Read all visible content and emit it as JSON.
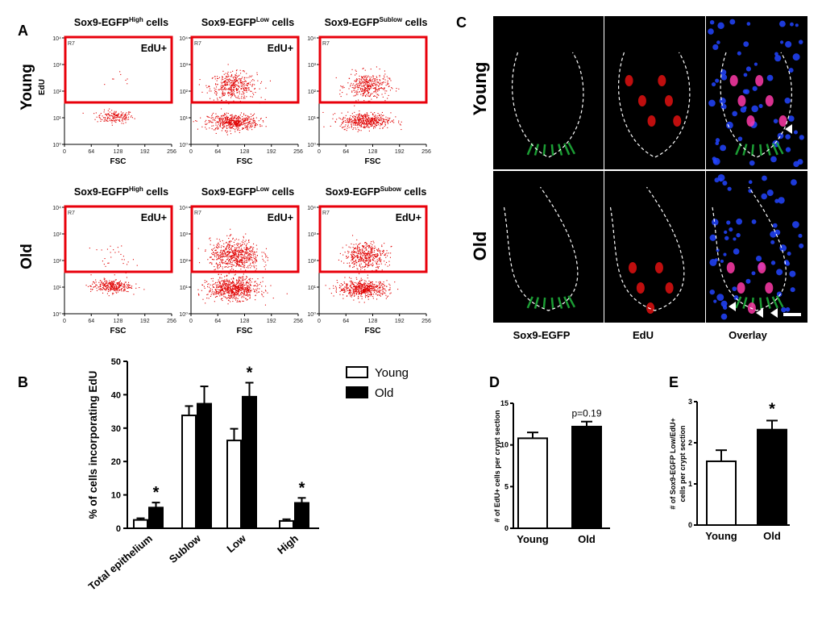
{
  "panel_labels": {
    "A": "A",
    "B": "B",
    "C": "C",
    "D": "D",
    "E": "E"
  },
  "colors": {
    "red": "#e8000b",
    "dot": "#e00000",
    "green": "#1fae3a",
    "blue": "#2244ff",
    "magenta": "#ff3aa8"
  },
  "flow": {
    "rows": [
      {
        "label": "Young",
        "edu_axis": "EdU"
      },
      {
        "label": "Old",
        "edu_axis": ""
      }
    ],
    "panels": [
      {
        "row": 0,
        "col": 0,
        "title": "Sox9-EGFP",
        "sup": "High",
        "suffix": " cells",
        "edu_label": "EdU+",
        "gate": "R7",
        "xlabel": "FSC",
        "xticks": [
          "0",
          "64",
          "128",
          "192",
          "256"
        ],
        "yticks": [
          "10⁰",
          "10¹",
          "10²",
          "10³",
          "10⁴"
        ],
        "populations": [
          {
            "label": "upper",
            "n": 8,
            "x_mean": 140,
            "x_sd": 22,
            "y_mean": 2.4,
            "y_sd": 0.25
          },
          {
            "label": "lower",
            "n": 170,
            "x_mean": 120,
            "x_sd": 22,
            "y_mean": 1.05,
            "y_sd": 0.12
          }
        ]
      },
      {
        "row": 0,
        "col": 1,
        "title": "Sox9-EGFP",
        "sup": "Low",
        "suffix": " cells",
        "edu_label": "EdU+",
        "gate": "R7",
        "xlabel": "FSC",
        "xticks": [
          "0",
          "64",
          "128",
          "192",
          "256"
        ],
        "yticks": [
          "10⁰",
          "10¹",
          "10²",
          "10³",
          "10⁴"
        ],
        "populations": [
          {
            "label": "upper",
            "n": 420,
            "x_mean": 100,
            "x_sd": 28,
            "y_mean": 2.2,
            "y_sd": 0.25
          },
          {
            "label": "lower",
            "n": 520,
            "x_mean": 100,
            "x_sd": 30,
            "y_mean": 0.85,
            "y_sd": 0.15
          }
        ]
      },
      {
        "row": 0,
        "col": 2,
        "title": "Sox9-EGFP",
        "sup": "Sublow",
        "suffix": " cells",
        "edu_label": "",
        "gate": "R7",
        "xlabel": "FSC",
        "xticks": [
          "0",
          "64",
          "128",
          "192",
          "256"
        ],
        "yticks": [
          "10⁰",
          "10¹",
          "10²",
          "10³",
          "10⁴"
        ],
        "populations": [
          {
            "label": "upper",
            "n": 380,
            "x_mean": 115,
            "x_sd": 25,
            "y_mean": 2.2,
            "y_sd": 0.25
          },
          {
            "label": "lower",
            "n": 480,
            "x_mean": 110,
            "x_sd": 30,
            "y_mean": 0.9,
            "y_sd": 0.15
          }
        ]
      },
      {
        "row": 1,
        "col": 0,
        "title": "Sox9-EGFP",
        "sup": "High",
        "suffix": " cells",
        "edu_label": "EdU+",
        "gate": "R7",
        "xlabel": "FSC",
        "xticks": [
          "0",
          "64",
          "128",
          "192",
          "256"
        ],
        "yticks": [
          "10⁰",
          "10¹",
          "10²",
          "10³",
          "10⁴"
        ],
        "populations": [
          {
            "label": "upper",
            "n": 30,
            "x_mean": 120,
            "x_sd": 25,
            "y_mean": 2.1,
            "y_sd": 0.25
          },
          {
            "label": "lower",
            "n": 300,
            "x_mean": 110,
            "x_sd": 24,
            "y_mean": 1.05,
            "y_sd": 0.12
          }
        ]
      },
      {
        "row": 1,
        "col": 1,
        "title": "Sox9-EGFP",
        "sup": "Low",
        "suffix": " cells",
        "edu_label": "EdU+",
        "gate": "R7",
        "xlabel": "FSC",
        "xticks": [
          "0",
          "64",
          "128",
          "192",
          "256"
        ],
        "yticks": [
          "10⁰",
          "10¹",
          "10²",
          "10³",
          "10⁴"
        ],
        "populations": [
          {
            "label": "upper",
            "n": 650,
            "x_mean": 105,
            "x_sd": 30,
            "y_mean": 2.2,
            "y_sd": 0.3
          },
          {
            "label": "lower",
            "n": 700,
            "x_mean": 100,
            "x_sd": 30,
            "y_mean": 0.95,
            "y_sd": 0.2
          }
        ]
      },
      {
        "row": 1,
        "col": 2,
        "title": "Sox9-EGFP",
        "sup": "Subow",
        "suffix": " cells",
        "edu_label": "EdU+",
        "gate": "R7",
        "xlabel": "FSC",
        "xticks": [
          "0",
          "64",
          "128",
          "192",
          "256"
        ],
        "yticks": [
          "10⁰",
          "10¹",
          "10²",
          "10³",
          "10⁴"
        ],
        "populations": [
          {
            "label": "upper",
            "n": 450,
            "x_mean": 110,
            "x_sd": 25,
            "y_mean": 2.2,
            "y_sd": 0.25
          },
          {
            "label": "lower",
            "n": 550,
            "x_mean": 105,
            "x_sd": 30,
            "y_mean": 0.95,
            "y_sd": 0.15
          }
        ]
      }
    ]
  },
  "chart_data": [
    {
      "id": "B",
      "type": "bar",
      "title": "",
      "ylabel": "% of cells incorporating EdU",
      "xlabel": "",
      "ylim": [
        0,
        50
      ],
      "yticks": [
        0,
        10,
        20,
        30,
        40,
        50
      ],
      "categories": [
        "Total epithelium",
        "Sublow",
        "Low",
        "High"
      ],
      "series": [
        {
          "name": "Young",
          "color": "#ffffff",
          "values": [
            2.5,
            33.8,
            26.3,
            2.2
          ],
          "errors": [
            0.5,
            2.8,
            3.5,
            0.5
          ]
        },
        {
          "name": "Old",
          "color": "#000000",
          "values": [
            6.2,
            37.3,
            39.4,
            7.6
          ],
          "errors": [
            1.5,
            5.2,
            4.2,
            1.5
          ]
        }
      ],
      "annotations": [
        "",
        "",
        "*",
        "*"
      ],
      "annotations_young": [
        "",
        "",
        "",
        ""
      ],
      "annotations_old": [
        "*",
        "",
        "*",
        "*"
      ],
      "legend": [
        "Young",
        "Old"
      ]
    },
    {
      "id": "D",
      "type": "bar",
      "ylabel": "# of EdU+ cells per crypt section",
      "ylim": [
        0,
        15
      ],
      "yticks": [
        0,
        5,
        10,
        15
      ],
      "categories": [
        "Young",
        "Old"
      ],
      "values": [
        10.8,
        12.2
      ],
      "errors": [
        0.7,
        0.6
      ],
      "fills": [
        "#ffffff",
        "#000000"
      ],
      "annotation": "p=0.19"
    },
    {
      "id": "E",
      "type": "bar",
      "ylabel_line1": "# of Sox9-EGFP Low/EdU+",
      "ylabel_line2": "cells per crypt section",
      "ylim": [
        0,
        3
      ],
      "yticks": [
        0,
        1,
        2,
        3
      ],
      "categories": [
        "Young",
        "Old"
      ],
      "values": [
        1.55,
        2.32
      ],
      "errors": [
        0.27,
        0.22
      ],
      "fills": [
        "#ffffff",
        "#000000"
      ],
      "annotation": "*"
    }
  ],
  "micrographs": {
    "row_labels": [
      "Young",
      "Old"
    ],
    "column_labels": [
      "Sox9-EGFP",
      "EdU",
      "Overlay"
    ],
    "scale_bar": ""
  }
}
